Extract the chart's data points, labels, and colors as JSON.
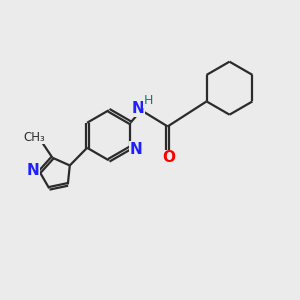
{
  "background_color": "#ebebeb",
  "bond_color": "#2b2b2b",
  "N_color": "#2020ff",
  "NH_color": "#008080",
  "H_color": "#008080",
  "O_color": "#ff0000",
  "line_width": 1.6,
  "double_sep": 0.1,
  "figsize": [
    3.0,
    3.0
  ],
  "dpi": 100,
  "xlim": [
    0,
    10
  ],
  "ylim": [
    0,
    10
  ]
}
